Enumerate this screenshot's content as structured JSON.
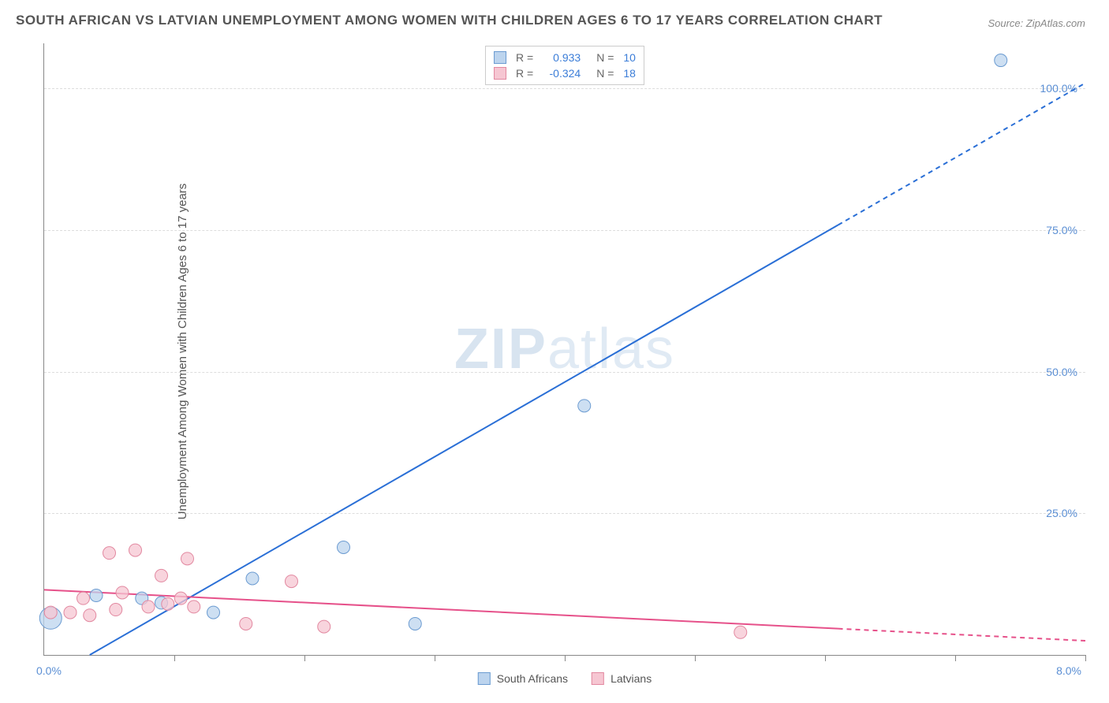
{
  "title": "SOUTH AFRICAN VS LATVIAN UNEMPLOYMENT AMONG WOMEN WITH CHILDREN AGES 6 TO 17 YEARS CORRELATION CHART",
  "source": "Source: ZipAtlas.com",
  "y_axis_label": "Unemployment Among Women with Children Ages 6 to 17 years",
  "watermark": {
    "bold": "ZIP",
    "light": "atlas"
  },
  "chart": {
    "type": "scatter",
    "xlim": [
      0,
      8
    ],
    "ylim": [
      0,
      108
    ],
    "x_origin_label": "0.0%",
    "x_max_label": "8.0%",
    "y_ticks": [
      {
        "value": 25,
        "label": "25.0%"
      },
      {
        "value": 50,
        "label": "50.0%"
      },
      {
        "value": 75,
        "label": "75.0%"
      },
      {
        "value": 100,
        "label": "100.0%"
      }
    ],
    "x_tick_positions": [
      1,
      2,
      3,
      4,
      5,
      6,
      7,
      8
    ],
    "grid_color": "#dddddd",
    "axis_color": "#888888",
    "background_color": "#ffffff",
    "series": [
      {
        "name": "South Africans",
        "marker_fill": "#bcd4ee",
        "marker_stroke": "#6b9bd1",
        "marker_radius": 8,
        "line_color": "#2a6fd6",
        "line_width": 2,
        "line_dash_start": 6.1,
        "r": "0.933",
        "n": "10",
        "trend": {
          "x1": 0.35,
          "y1": 0,
          "x2": 8.0,
          "y2": 101
        },
        "points": [
          {
            "x": 0.05,
            "y": 6.5,
            "r": 14
          },
          {
            "x": 0.4,
            "y": 10.5
          },
          {
            "x": 0.75,
            "y": 10
          },
          {
            "x": 0.9,
            "y": 9.2
          },
          {
            "x": 1.3,
            "y": 7.5
          },
          {
            "x": 1.6,
            "y": 13.5
          },
          {
            "x": 2.3,
            "y": 19
          },
          {
            "x": 2.85,
            "y": 5.5
          },
          {
            "x": 4.15,
            "y": 44
          },
          {
            "x": 7.35,
            "y": 105
          }
        ]
      },
      {
        "name": "Latvians",
        "marker_fill": "#f6c6d2",
        "marker_stroke": "#e288a0",
        "marker_radius": 8,
        "line_color": "#e6518a",
        "line_width": 2,
        "line_dash_start": 6.1,
        "r": "-0.324",
        "n": "18",
        "trend": {
          "x1": 0,
          "y1": 11.5,
          "x2": 8.0,
          "y2": 2.5
        },
        "points": [
          {
            "x": 0.05,
            "y": 7.5
          },
          {
            "x": 0.2,
            "y": 7.5
          },
          {
            "x": 0.3,
            "y": 10
          },
          {
            "x": 0.35,
            "y": 7
          },
          {
            "x": 0.5,
            "y": 18
          },
          {
            "x": 0.55,
            "y": 8
          },
          {
            "x": 0.6,
            "y": 11
          },
          {
            "x": 0.7,
            "y": 18.5
          },
          {
            "x": 0.8,
            "y": 8.5
          },
          {
            "x": 0.9,
            "y": 14
          },
          {
            "x": 0.95,
            "y": 9
          },
          {
            "x": 1.05,
            "y": 10
          },
          {
            "x": 1.1,
            "y": 17
          },
          {
            "x": 1.15,
            "y": 8.5
          },
          {
            "x": 1.55,
            "y": 5.5
          },
          {
            "x": 1.9,
            "y": 13
          },
          {
            "x": 2.15,
            "y": 5
          },
          {
            "x": 5.35,
            "y": 4
          }
        ]
      }
    ],
    "legend_bottom": [
      {
        "label": "South Africans",
        "fill": "#bcd4ee",
        "stroke": "#6b9bd1"
      },
      {
        "label": "Latvians",
        "fill": "#f6c6d2",
        "stroke": "#e288a0"
      }
    ]
  }
}
